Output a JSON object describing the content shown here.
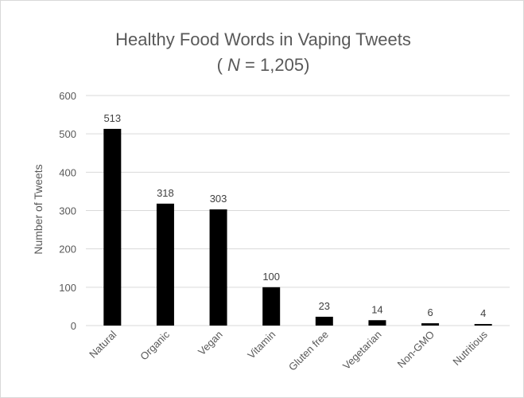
{
  "chart_data": {
    "type": "bar",
    "title": "Healthy Food Words in Vaping Tweets",
    "subtitle_prefix": "( ",
    "subtitle_italic": "N",
    "subtitle_suffix": " = 1,205)",
    "xlabel": "",
    "ylabel": "Number  of Tweets",
    "ylim": [
      0,
      600
    ],
    "yticks": [
      0,
      100,
      200,
      300,
      400,
      500,
      600
    ],
    "grid": true,
    "legend": "none",
    "categories": [
      "Natural",
      "Organic",
      "Vegan",
      "Vitamin",
      "Gluten free",
      "Vegetarian",
      "Non-GMO",
      "Nutritious"
    ],
    "values": [
      513,
      318,
      303,
      100,
      23,
      14,
      6,
      4
    ],
    "bar_color": "#000000"
  }
}
